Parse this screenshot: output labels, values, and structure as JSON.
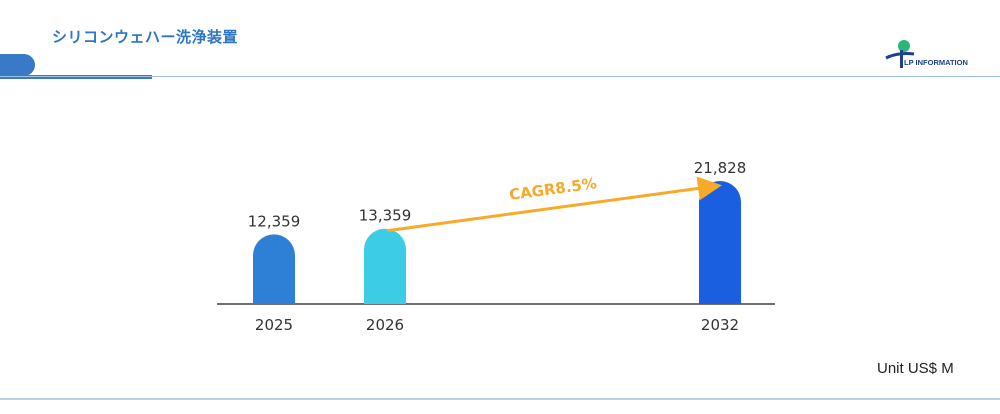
{
  "header": {
    "title": "シリコンウェハー洗浄装置",
    "logo_text": "LP INFORMATION"
  },
  "unit_label": "Unit US$ M",
  "colors": {
    "bar_2025": "#2e7fd6",
    "bar_2026": "#3ccce6",
    "bar_2032": "#1a5fe0",
    "cagr_arrow": "#f7a928",
    "axis": "#6f6f6f"
  },
  "chart_data": {
    "type": "bar",
    "categories": [
      "2025",
      "2026",
      "2032"
    ],
    "values": [
      12359,
      13359,
      21828
    ],
    "value_labels": [
      "12,359",
      "13,359",
      "21,828"
    ],
    "annotation": {
      "text": "CAGR8.5%",
      "from": "2026",
      "to": "2032"
    },
    "xlabel": "",
    "ylabel": "",
    "grid": false,
    "legend": "none"
  }
}
